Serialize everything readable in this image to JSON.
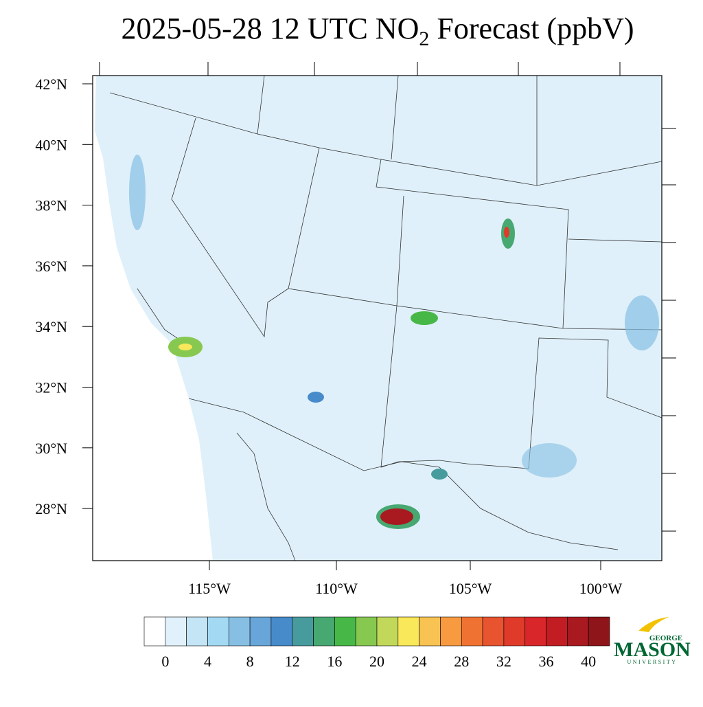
{
  "title": {
    "prefix": "2025-05-28 12 UTC NO",
    "subscript": "2",
    "suffix": " Forecast (ppbV)"
  },
  "lat_labels": [
    "42°N",
    "40°N",
    "38°N",
    "36°N",
    "34°N",
    "32°N",
    "30°N",
    "28°N"
  ],
  "lon_labels": [
    "115°W",
    "110°W",
    "105°W",
    "100°W"
  ],
  "colorbar": {
    "colors": [
      "#ffffff",
      "#e1f1fb",
      "#c3e5f6",
      "#a3d9f2",
      "#86bfe3",
      "#68a6da",
      "#478bca",
      "#479b9d",
      "#47a872",
      "#47b847",
      "#87c851",
      "#c1d85a",
      "#f8e85a",
      "#f8c352",
      "#f89a40",
      "#f07232",
      "#e85330",
      "#e03a2a",
      "#d8262a",
      "#c21d22",
      "#a81920",
      "#8e151a"
    ],
    "clim": [
      -2,
      42
    ],
    "ticks": [
      0,
      4,
      8,
      12,
      16,
      20,
      24,
      28,
      32,
      36,
      40
    ]
  },
  "logo": {
    "top": "GEORGE",
    "main": "MASON",
    "bottom": "UNIVERSITY"
  }
}
